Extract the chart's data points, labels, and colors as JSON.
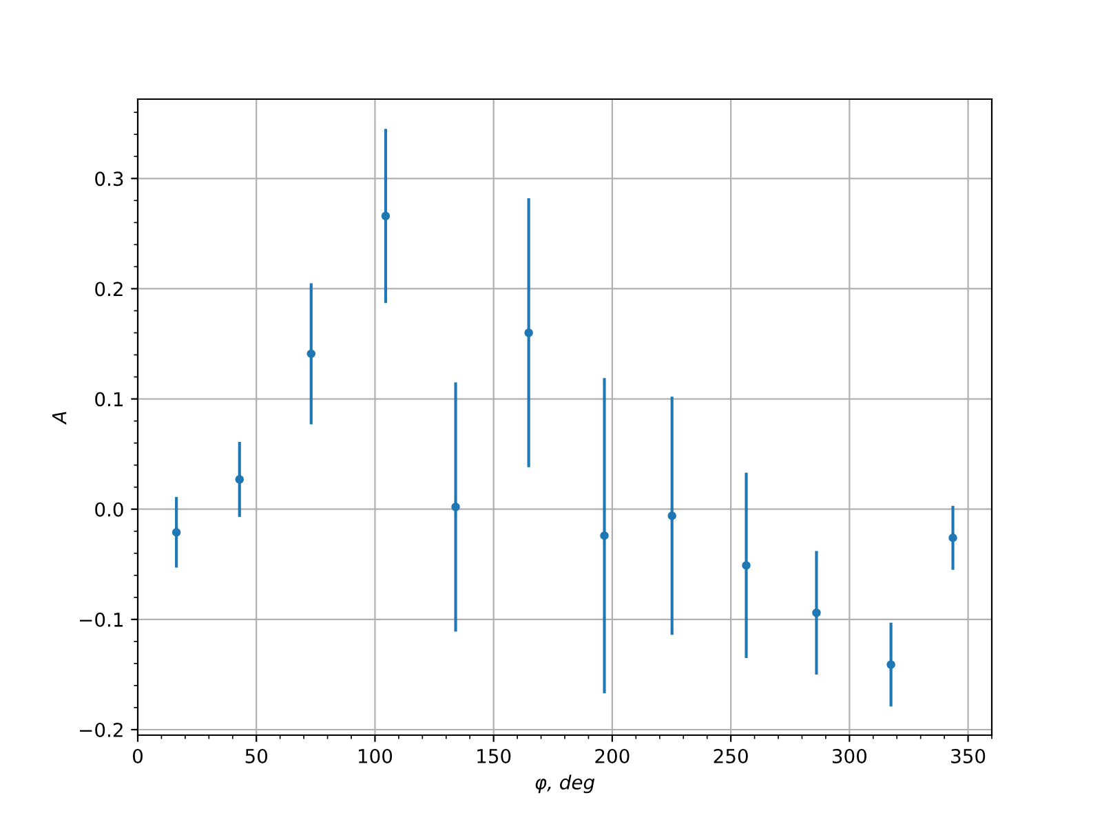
{
  "chart_data": {
    "type": "scatter",
    "xlabel": "φ, deg",
    "ylabel": "A",
    "x": [
      16.3,
      42.9,
      73.1,
      104.5,
      134,
      164.8,
      196.7,
      225.2,
      256.5,
      286.1,
      317.5,
      343.6
    ],
    "series": [
      {
        "color": "#1f77b4",
        "values": [
          -0.021,
          0.027,
          0.141,
          0.266,
          0.002,
          0.16,
          -0.024,
          -0.006,
          -0.051,
          -0.094,
          -0.141,
          -0.026
        ],
        "errors": [
          0.032,
          0.034,
          0.064,
          0.079,
          0.113,
          0.122,
          0.143,
          0.108,
          0.084,
          0.056,
          0.038,
          0.029
        ]
      }
    ],
    "xlim": [
      0,
      360
    ],
    "ylim": [
      -0.205,
      0.372
    ],
    "xticks": [
      0,
      50,
      100,
      150,
      200,
      250,
      300,
      350
    ],
    "yticks": [
      {
        "value": -0.2,
        "label": "−0.2"
      },
      {
        "value": -0.1,
        "label": "−0.1"
      },
      {
        "value": 0,
        "label": "0.0"
      },
      {
        "value": 0.1,
        "label": "0.1"
      },
      {
        "value": 0.2,
        "label": "0.2"
      },
      {
        "value": 0.3,
        "label": "0.3"
      }
    ],
    "grid": true,
    "marker": "circle",
    "legend": false
  }
}
